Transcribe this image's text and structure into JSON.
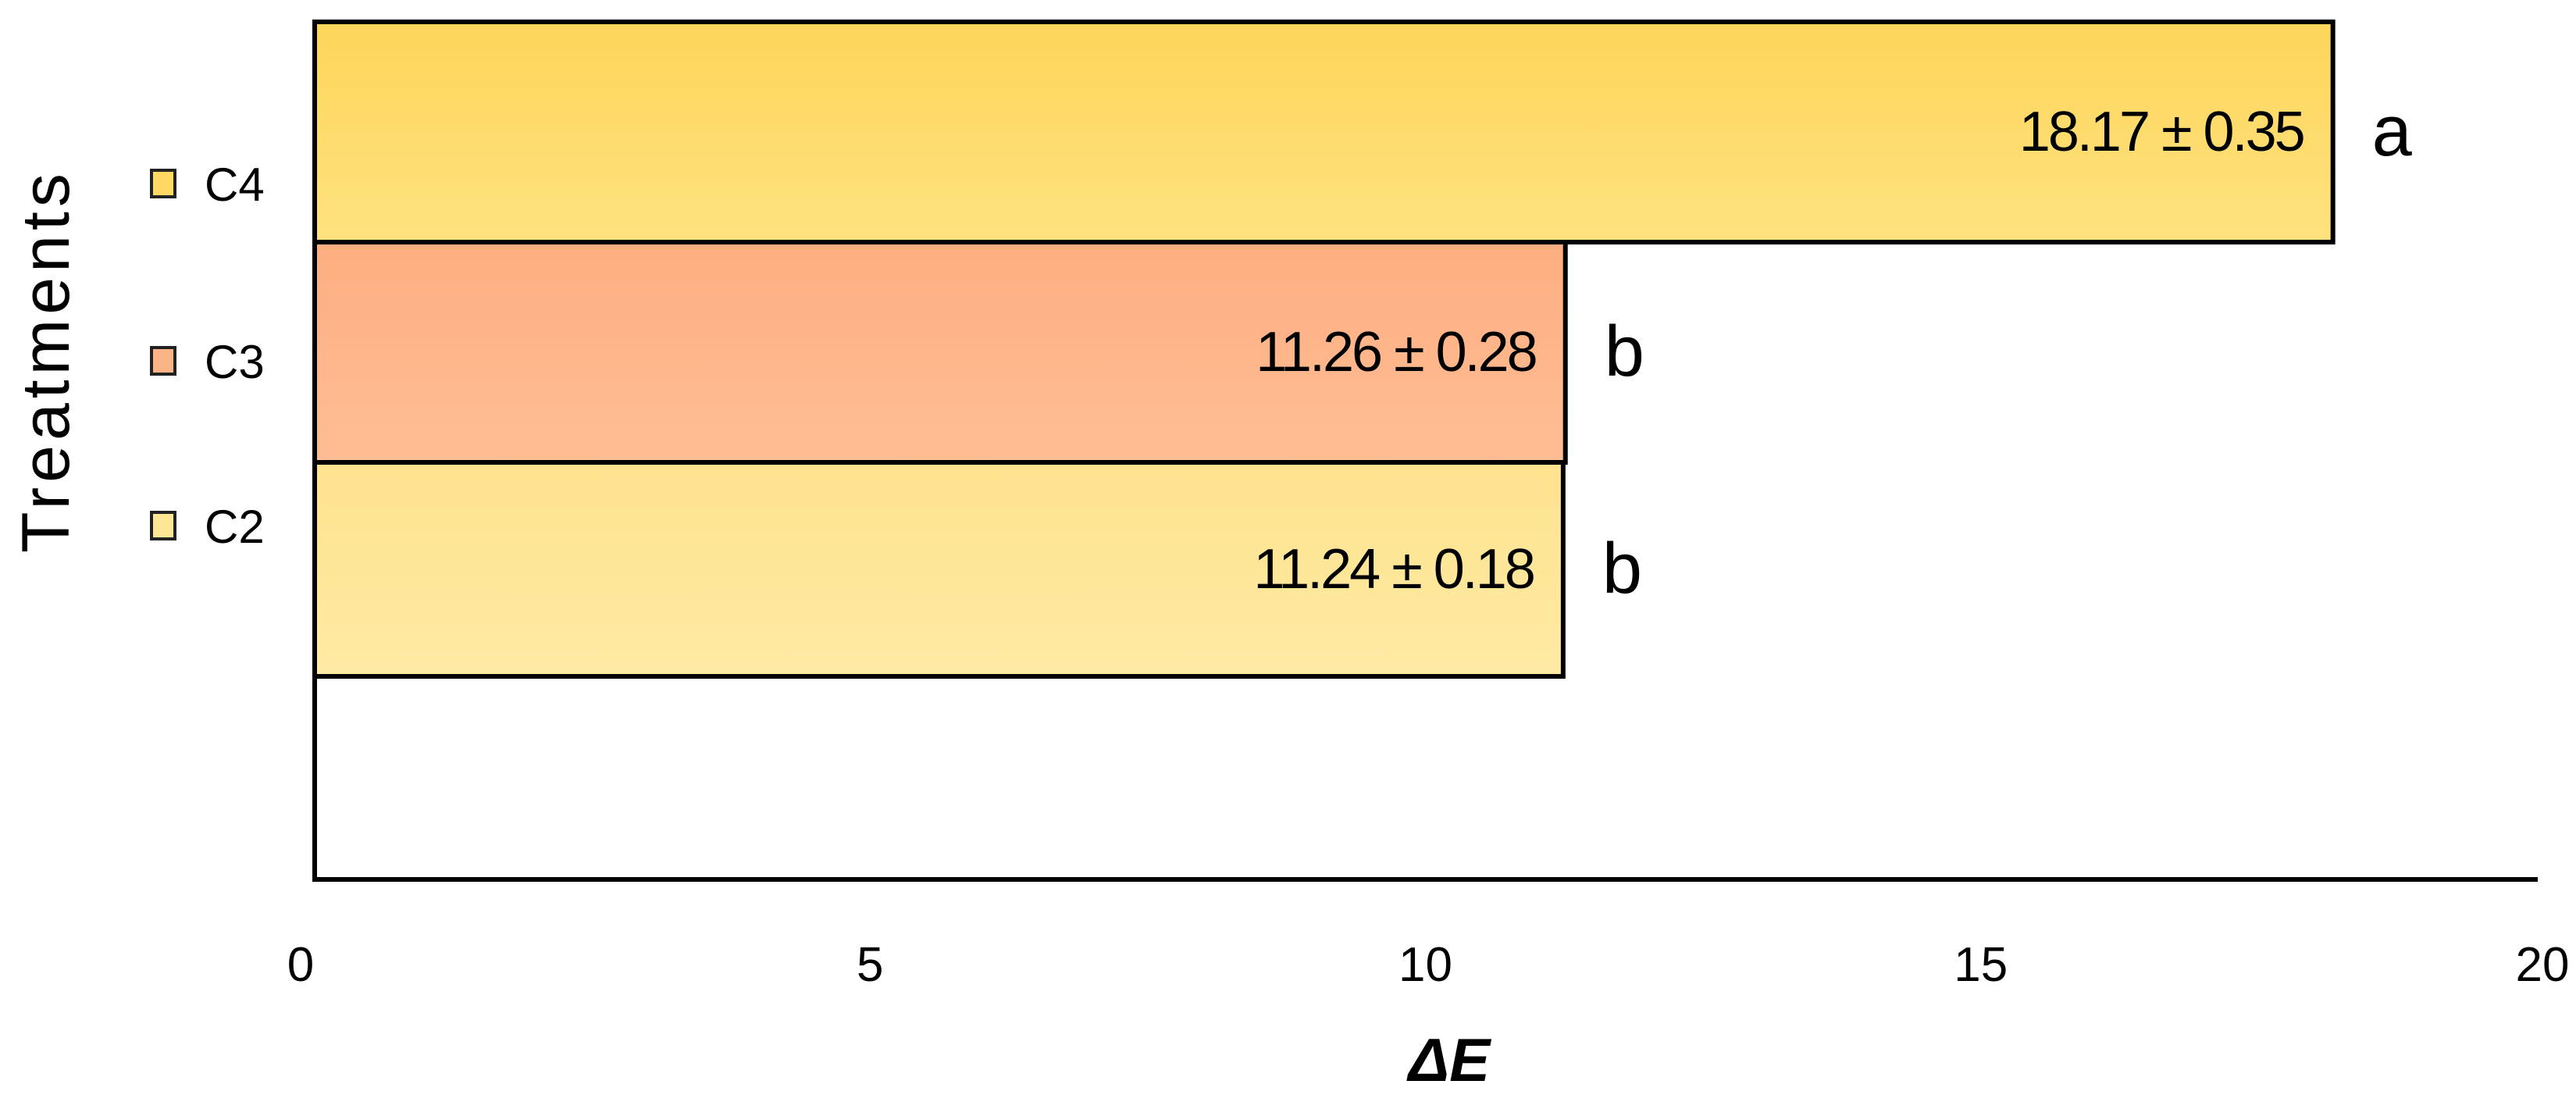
{
  "chart_data": {
    "type": "bar",
    "orientation": "horizontal",
    "xlabel": "ΔE",
    "ylabel": "Treatments",
    "xlim": [
      0,
      20
    ],
    "xticks": [
      "0",
      "5",
      "10",
      "15",
      "20"
    ],
    "grid": false,
    "legend_position": "left",
    "categories": [
      "C4",
      "C3",
      "C2"
    ],
    "values": [
      18.17,
      11.26,
      11.24
    ],
    "errors": [
      0.35,
      0.28,
      0.18
    ],
    "value_labels": [
      "18.17 ± 0.35",
      "11.26 ± 0.28",
      "11.24 ± 0.18"
    ],
    "letters": [
      "a",
      "b",
      "b"
    ],
    "colors": [
      "#FDD862",
      "#FDB388",
      "#FEE697"
    ],
    "edge_color": "#000000"
  }
}
